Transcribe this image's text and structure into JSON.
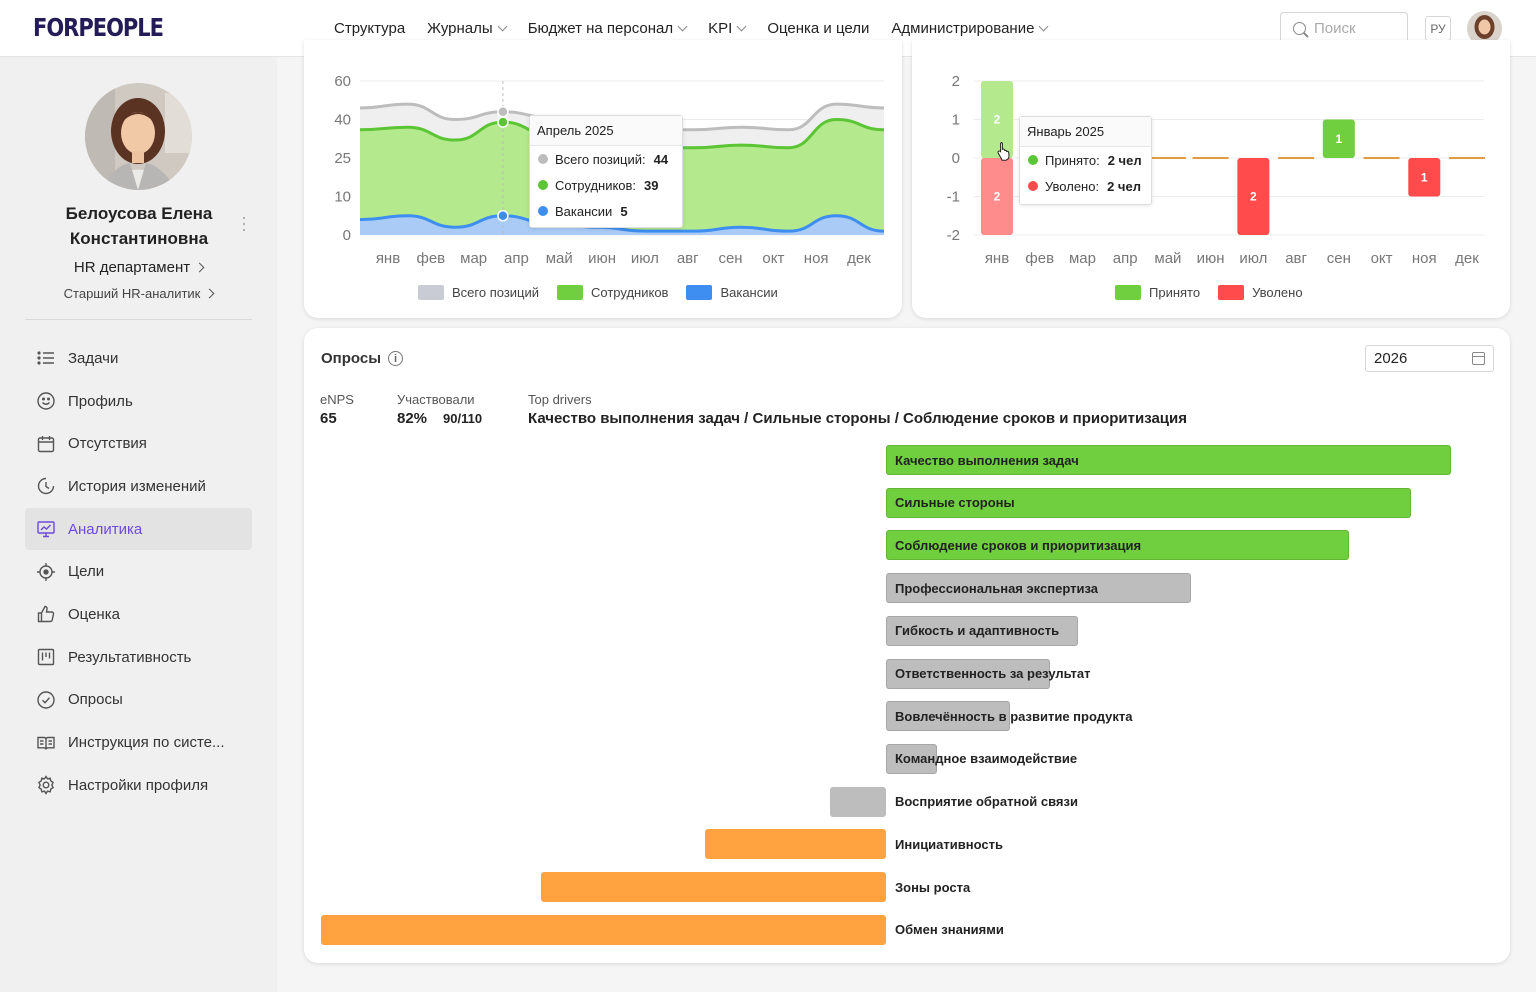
{
  "header": {
    "logo": "FORPEOPLE",
    "nav": [
      {
        "label": "Структура",
        "dropdown": false
      },
      {
        "label": "Журналы",
        "dropdown": true
      },
      {
        "label": "Бюджет на персонал",
        "dropdown": true
      },
      {
        "label": "KPI",
        "dropdown": true
      },
      {
        "label": "Оценка и цели",
        "dropdown": false
      },
      {
        "label": "Администрирование",
        "dropdown": true
      }
    ],
    "search_placeholder": "Поиск",
    "lang": "РУ"
  },
  "sidebar": {
    "name": "Белоусова Елена Константиновна",
    "department": "HR департамент",
    "position": "Старший HR-аналитик",
    "menu": [
      {
        "label": "Задачи",
        "icon": "list-icon",
        "active": false
      },
      {
        "label": "Профиль",
        "icon": "smile-icon",
        "active": false
      },
      {
        "label": "Отсутствия",
        "icon": "calendar-icon",
        "active": false
      },
      {
        "label": "История изменений",
        "icon": "history-icon",
        "active": false
      },
      {
        "label": "Аналитика",
        "icon": "analytics-icon",
        "active": true
      },
      {
        "label": "Цели",
        "icon": "target-icon",
        "active": false
      },
      {
        "label": "Оценка",
        "icon": "thumbs-up-icon",
        "active": false
      },
      {
        "label": "Результативность",
        "icon": "kanban-icon",
        "active": false
      },
      {
        "label": "Опросы",
        "icon": "check-circle-icon",
        "active": false
      },
      {
        "label": "Инструкция по систе...",
        "icon": "book-icon",
        "active": false
      },
      {
        "label": "Настройки профиля",
        "icon": "gear-icon",
        "active": false
      }
    ]
  },
  "chart_data": [
    {
      "type": "area",
      "y_ticks": [
        "60",
        "40",
        "25",
        "10",
        "0"
      ],
      "categories": [
        "янв",
        "фев",
        "мар",
        "апр",
        "май",
        "июн",
        "июл",
        "авг",
        "сен",
        "окт",
        "ноя",
        "дек"
      ],
      "series": [
        {
          "name": "Всего позиций",
          "color": "#c9ccd4",
          "values": [
            46,
            48,
            40,
            44,
            41,
            38,
            36,
            36,
            37,
            36,
            48,
            46
          ]
        },
        {
          "name": "Сотрудников",
          "color": "#6fcf3f",
          "values": [
            36,
            37,
            32,
            39,
            34,
            31,
            29,
            29,
            30,
            29,
            40,
            36
          ]
        },
        {
          "name": "Вакансии",
          "color": "#3d8ef0",
          "values": [
            4,
            5,
            2,
            5,
            3,
            2,
            1,
            1,
            2,
            1,
            5,
            1
          ]
        }
      ],
      "tooltip": {
        "title": "Апрель 2025",
        "rows": [
          {
            "label": "Всего позиций:",
            "value": "44",
            "color": "#bdbdbd"
          },
          {
            "label": "Сотрудников:",
            "value": "39",
            "color": "#5cc536"
          },
          {
            "label": "Вакансии",
            "value": "5",
            "color": "#3d8ef0"
          }
        ]
      }
    },
    {
      "type": "bar",
      "y_ticks": [
        "2",
        "1",
        "0",
        "-1",
        "-2"
      ],
      "ylim": [
        -2,
        2
      ],
      "categories": [
        "янв",
        "фев",
        "мар",
        "апр",
        "май",
        "июн",
        "июл",
        "авг",
        "сен",
        "окт",
        "ноя",
        "дек"
      ],
      "series": [
        {
          "name": "Принято",
          "color": "#6fcf3f",
          "values": [
            2,
            0,
            0,
            0,
            0,
            0,
            0,
            0,
            1,
            0,
            0,
            0
          ]
        },
        {
          "name": "Уволено",
          "color": "#ff4b4b",
          "values": [
            -2,
            0,
            0,
            0,
            0,
            0,
            -2,
            0,
            0,
            0,
            -1,
            0
          ]
        }
      ],
      "tooltip": {
        "title": "Январь 2025",
        "rows": [
          {
            "label": "Принято:",
            "value": "2 чел",
            "color": "#5cc536"
          },
          {
            "label": "Уволено:",
            "value": "2 чел",
            "color": "#ff4b4b"
          }
        ]
      }
    },
    {
      "type": "bar",
      "orientation": "horizontal",
      "min": -100,
      "max": 100,
      "series": [
        {
          "label": "Качество выполнения задач",
          "value": 100,
          "color": "#6fcf3f"
        },
        {
          "label": "Сильные стороны",
          "value": 93,
          "color": "#6fcf3f"
        },
        {
          "label": "Соблюдение сроков и приоритизация",
          "value": 82,
          "color": "#6fcf3f"
        },
        {
          "label": "Профессиональная экспертиза",
          "value": 54,
          "color": "#bdbdbd"
        },
        {
          "label": "Гибкость и адаптивность",
          "value": 34,
          "color": "#bdbdbd"
        },
        {
          "label": "Ответственность за результат",
          "value": 29,
          "color": "#bdbdbd"
        },
        {
          "label": "Вовлечённость в развитие продукта",
          "value": 22,
          "color": "#bdbdbd"
        },
        {
          "label": "Командное взаимодействие",
          "value": 9,
          "color": "#bdbdbd"
        },
        {
          "label": "Восприятие обратной связи",
          "value": -10,
          "color": "#bdbdbd"
        },
        {
          "label": "Инициативность",
          "value": -32,
          "color": "#ffa23f"
        },
        {
          "label": "Зоны роста",
          "value": -61,
          "color": "#ffa23f"
        },
        {
          "label": "Обмен знаниями",
          "value": -100,
          "color": "#ffa23f"
        }
      ]
    }
  ],
  "surveys": {
    "title": "Опросы",
    "year": "2026",
    "enps_label": "eNPS",
    "enps_value": "65",
    "part_label": "Участвовали",
    "part_pct": "82%",
    "part_count": "90/110",
    "drivers_label": "Top drivers",
    "drivers_value": "Качество выполнения задач / Сильные стороны / Соблюдение сроков и приоритизация"
  }
}
